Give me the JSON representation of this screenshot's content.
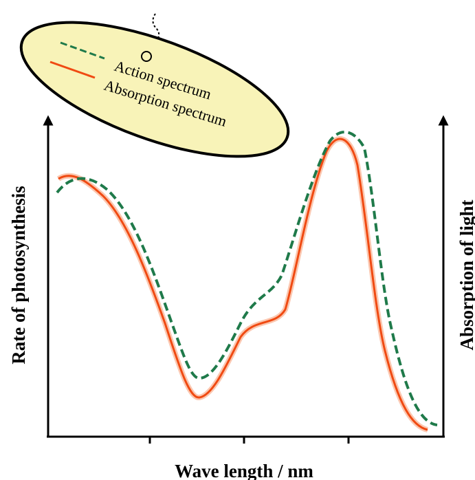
{
  "legend": {
    "items": [
      {
        "label": "Action spectrum"
      },
      {
        "label": "Absorption spectrum"
      }
    ]
  },
  "axes": {
    "y_left_label": "Rate of photosynthesis",
    "y_right_label": "Absorption of light",
    "x_label": "Wave length / nm"
  }
}
